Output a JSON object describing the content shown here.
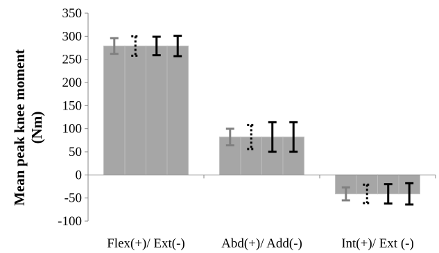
{
  "chart_data": {
    "type": "bar",
    "ylabel_lines": [
      "Mean peak knee moment",
      "(Nm)"
    ],
    "categories": [
      "Flex(+)/ Ext(-)",
      "Abd(+)/ Add(-)",
      "Int(+)/ Ext (-)"
    ],
    "yticks": [
      "350",
      "300",
      "250",
      "200",
      "150",
      "100",
      "50",
      "0",
      "-50",
      "-100"
    ],
    "ylim": [
      -100,
      350
    ],
    "grid": false,
    "legend": "none",
    "series": [
      {
        "values": [
          279,
          82,
          -41
        ],
        "errors": [
          17,
          18,
          14
        ],
        "bar_color": "#a6a6a6",
        "error_color": "#808080",
        "error_style": "solid",
        "error_width": 3
      },
      {
        "values": [
          279,
          82,
          -41
        ],
        "errors": [
          21,
          26,
          20
        ],
        "bar_color": "#a6a6a6",
        "error_color": "#000000",
        "error_style": "dotted",
        "error_width": 3
      },
      {
        "values": [
          279,
          82,
          -41
        ],
        "errors": [
          20,
          32,
          21
        ],
        "bar_color": "#a6a6a6",
        "error_color": "#000000",
        "error_style": "solid",
        "error_width": 3
      },
      {
        "values": [
          279,
          82,
          -41
        ],
        "errors": [
          22,
          32,
          23
        ],
        "bar_color": "#a6a6a6",
        "error_color": "#000000",
        "error_style": "solid",
        "error_width": 3
      }
    ]
  }
}
